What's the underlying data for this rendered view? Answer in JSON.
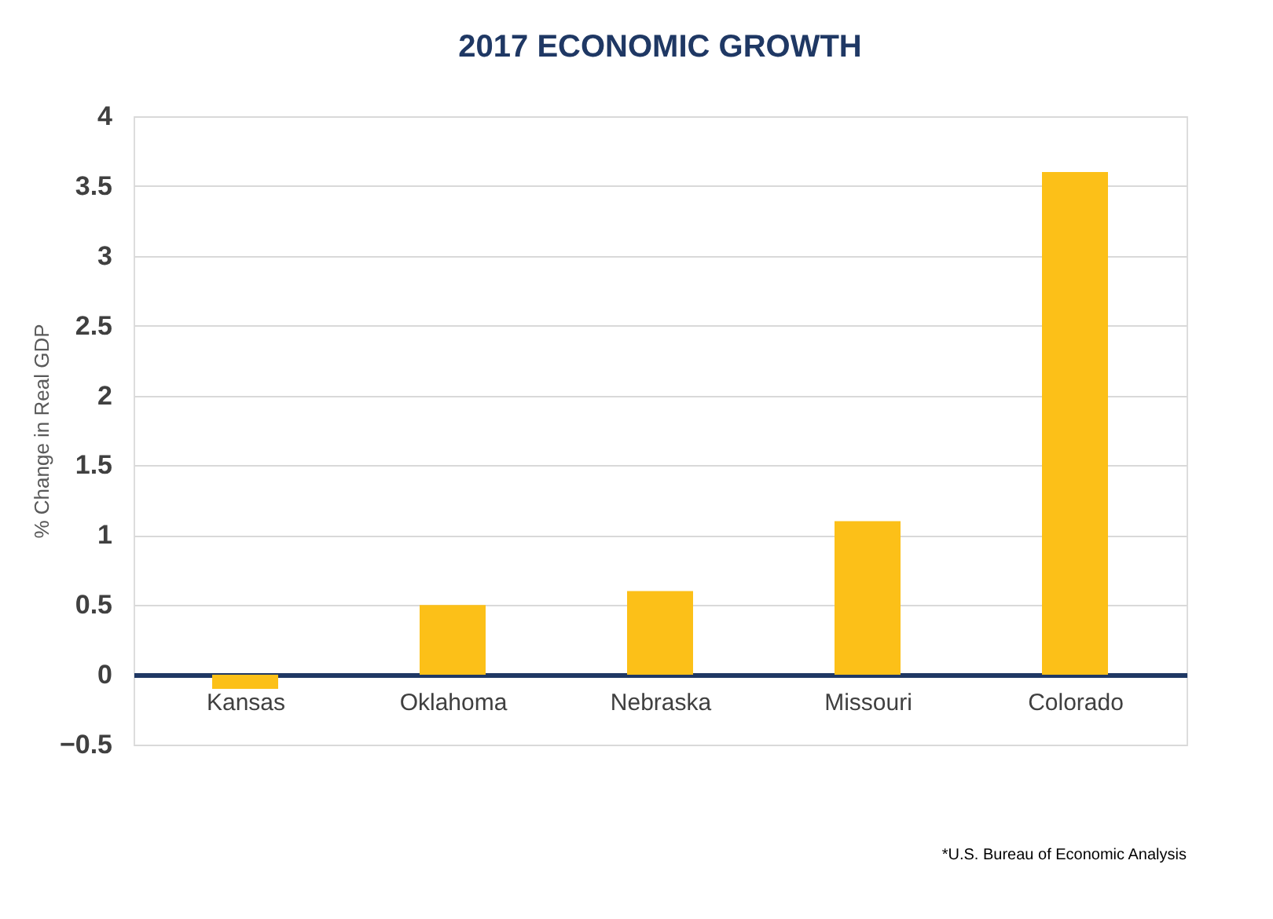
{
  "chart_data": {
    "type": "bar",
    "title": "2017 ECONOMIC GROWTH",
    "ylabel": "% Change in Real GDP",
    "categories": [
      "Kansas",
      "Oklahoma",
      "Nebraska",
      "Missouri",
      "Colorado"
    ],
    "values": [
      -0.1,
      0.5,
      0.6,
      1.1,
      3.6
    ],
    "color": "#fcc018",
    "ylim": [
      -0.5,
      4
    ],
    "yticks": [
      -0.5,
      0,
      0.5,
      1,
      1.5,
      2,
      2.5,
      3,
      3.5,
      4
    ],
    "grid": "y",
    "annotations": [
      "*U.S. Bureau of Economic Analysis"
    ]
  }
}
